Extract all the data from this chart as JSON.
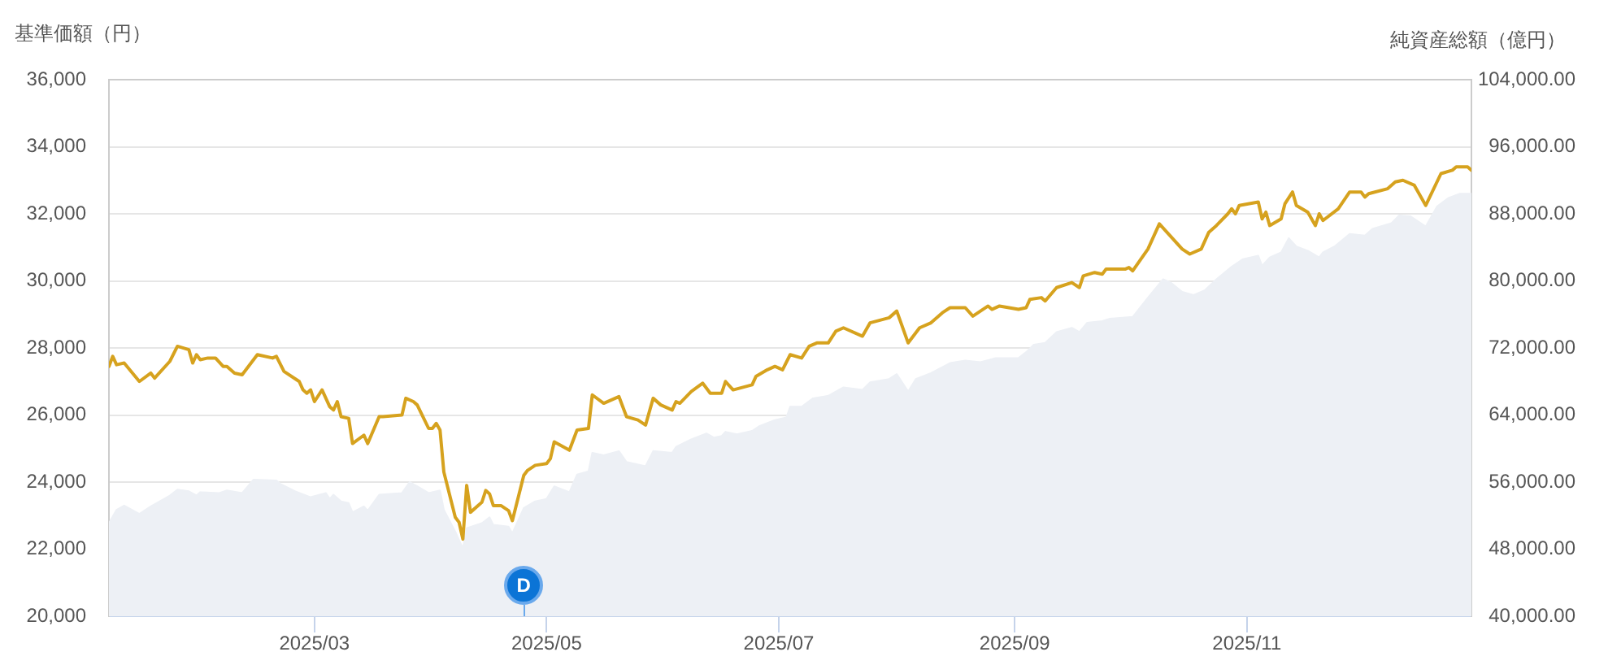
{
  "chart_data": {
    "type": "line",
    "ylabel": "基準価額（円）",
    "y2label": "純資産総額（億円）",
    "xlim": [
      "2025-01-06",
      "2025-12-30"
    ],
    "xticks": [
      {
        "value": "2025-03",
        "label": "2025/03"
      },
      {
        "value": "2025-05",
        "label": "2025/05"
      },
      {
        "value": "2025-07",
        "label": "2025/07"
      },
      {
        "value": "2025-09",
        "label": "2025/09"
      },
      {
        "value": "2025-11",
        "label": "2025/11"
      }
    ],
    "ylim": [
      20000,
      36000
    ],
    "yticks": [
      {
        "value": 20000,
        "label": "20,000"
      },
      {
        "value": 22000,
        "label": "22,000"
      },
      {
        "value": 24000,
        "label": "24,000"
      },
      {
        "value": 26000,
        "label": "26,000"
      },
      {
        "value": 28000,
        "label": "28,000"
      },
      {
        "value": 30000,
        "label": "30,000"
      },
      {
        "value": 32000,
        "label": "32,000"
      },
      {
        "value": 34000,
        "label": "34,000"
      },
      {
        "value": 36000,
        "label": "36,000"
      }
    ],
    "y2lim": [
      40000,
      104000
    ],
    "y2ticks": [
      {
        "value": 40000,
        "label": "40,000.00"
      },
      {
        "value": 48000,
        "label": "48,000.00"
      },
      {
        "value": 56000,
        "label": "56,000.00"
      },
      {
        "value": 64000,
        "label": "64,000.00"
      },
      {
        "value": 72000,
        "label": "72,000.00"
      },
      {
        "value": 80000,
        "label": "80,000.00"
      },
      {
        "value": 88000,
        "label": "88,000.00"
      },
      {
        "value": 96000,
        "label": "96,000.00"
      },
      {
        "value": 104000,
        "label": "104,000.00"
      }
    ],
    "grid": "y",
    "annotations": [
      {
        "text": "D",
        "x": "2025-04-25",
        "y": 20000
      }
    ],
    "series": [
      {
        "type": "area",
        "axis": "y2",
        "color": "#edf0f5",
        "x": [
          "2025-01-06",
          "2025-01-08",
          "2025-01-10",
          "2025-01-14",
          "2025-01-17",
          "2025-01-22",
          "2025-01-24",
          "2025-01-27",
          "2025-01-29",
          "2025-01-30",
          "2025-02-04",
          "2025-02-06",
          "2025-02-10",
          "2025-02-13",
          "2025-02-19",
          "2025-02-20",
          "2025-02-24",
          "2025-02-28",
          "2025-03-04",
          "2025-03-05",
          "2025-03-06",
          "2025-03-08",
          "2025-03-10",
          "2025-03-11",
          "2025-03-14",
          "2025-03-15",
          "2025-03-18",
          "2025-03-24",
          "2025-03-26",
          "2025-03-28",
          "2025-03-31",
          "2025-04-03",
          "2025-04-04",
          "2025-04-07",
          "2025-04-09",
          "2025-04-10",
          "2025-04-14",
          "2025-04-16",
          "2025-04-17",
          "2025-04-21",
          "2025-04-22",
          "2025-04-25",
          "2025-04-28",
          "2025-05-01",
          "2025-05-03",
          "2025-05-07",
          "2025-05-09",
          "2025-05-12",
          "2025-05-13",
          "2025-05-16",
          "2025-05-20",
          "2025-05-22",
          "2025-05-27",
          "2025-05-29",
          "2025-06-03",
          "2025-06-04",
          "2025-06-08",
          "2025-06-12",
          "2025-06-14",
          "2025-06-16",
          "2025-06-17",
          "2025-06-20",
          "2025-06-24",
          "2025-06-26",
          "2025-06-30",
          "2025-07-03",
          "2025-07-04",
          "2025-07-07",
          "2025-07-10",
          "2025-07-14",
          "2025-07-18",
          "2025-07-23",
          "2025-07-25",
          "2025-07-30",
          "2025-08-01",
          "2025-08-04",
          "2025-08-06",
          "2025-08-10",
          "2025-08-15",
          "2025-08-19",
          "2025-08-23",
          "2025-08-27",
          "2025-09-02",
          "2025-09-04",
          "2025-09-06",
          "2025-09-09",
          "2025-09-12",
          "2025-09-16",
          "2025-09-18",
          "2025-09-20",
          "2025-09-24",
          "2025-09-26",
          "2025-10-02",
          "2025-10-06",
          "2025-10-10",
          "2025-10-12",
          "2025-10-15",
          "2025-10-18",
          "2025-10-21",
          "2025-10-24",
          "2025-10-28",
          "2025-10-31",
          "2025-11-04",
          "2025-11-05",
          "2025-11-07",
          "2025-11-10",
          "2025-11-12",
          "2025-11-14",
          "2025-11-17",
          "2025-11-20",
          "2025-11-21",
          "2025-11-24",
          "2025-11-28",
          "2025-12-02",
          "2025-12-04",
          "2025-12-09",
          "2025-12-11",
          "2025-12-14",
          "2025-12-18",
          "2025-12-21",
          "2025-12-24",
          "2025-12-27",
          "2025-12-30"
        ],
        "values": [
          51100,
          52700,
          53200,
          52200,
          53100,
          54400,
          55100,
          54900,
          54400,
          54800,
          54700,
          55000,
          54700,
          56300,
          56200,
          55800,
          54900,
          54200,
          54700,
          54000,
          54500,
          53700,
          53500,
          52400,
          53100,
          52600,
          54500,
          54700,
          56000,
          55500,
          54700,
          55000,
          52700,
          50100,
          48100,
          50500,
          51100,
          51800,
          50900,
          50700,
          49900,
          52900,
          53700,
          54000,
          55500,
          54800,
          56900,
          57300,
          59500,
          59200,
          59700,
          58400,
          57900,
          59700,
          59500,
          60200,
          61100,
          61800,
          61300,
          61500,
          62000,
          61700,
          62100,
          62700,
          63400,
          63700,
          65000,
          65000,
          66000,
          66300,
          67300,
          67000,
          67900,
          68300,
          68900,
          66800,
          68300,
          69000,
          70200,
          70500,
          70300,
          70800,
          70800,
          71500,
          72400,
          72600,
          73900,
          74400,
          73900,
          75000,
          75200,
          75500,
          75700,
          78000,
          80200,
          79800,
          78700,
          78300,
          78900,
          80200,
          81700,
          82600,
          83000,
          81800,
          82800,
          83400,
          85100,
          84100,
          83600,
          82800,
          83400,
          84100,
          85600,
          85400,
          86200,
          86900,
          87800,
          87700,
          86500,
          88900,
          89900,
          90400,
          90400
        ]
      },
      {
        "color": "#d6a21e",
        "x": [
          "2025-01-06",
          "2025-01-07",
          "2025-01-08",
          "2025-01-10",
          "2025-01-14",
          "2025-01-17",
          "2025-01-18",
          "2025-01-22",
          "2025-01-24",
          "2025-01-27",
          "2025-01-28",
          "2025-01-29",
          "2025-01-30",
          "2025-02-01",
          "2025-02-03",
          "2025-02-05",
          "2025-02-06",
          "2025-02-08",
          "2025-02-10",
          "2025-02-14",
          "2025-02-18",
          "2025-02-19",
          "2025-02-21",
          "2025-02-25",
          "2025-02-26",
          "2025-02-27",
          "2025-02-28",
          "2025-03-01",
          "2025-03-03",
          "2025-03-05",
          "2025-03-06",
          "2025-03-07",
          "2025-03-08",
          "2025-03-10",
          "2025-03-11",
          "2025-03-14",
          "2025-03-15",
          "2025-03-18",
          "2025-03-19",
          "2025-03-24",
          "2025-03-25",
          "2025-03-27",
          "2025-03-28",
          "2025-03-31",
          "2025-04-01",
          "2025-04-02",
          "2025-04-03",
          "2025-04-04",
          "2025-04-07",
          "2025-04-08",
          "2025-04-09",
          "2025-04-10",
          "2025-04-11",
          "2025-04-14",
          "2025-04-15",
          "2025-04-16",
          "2025-04-17",
          "2025-04-19",
          "2025-04-21",
          "2025-04-22",
          "2025-04-25",
          "2025-04-26",
          "2025-04-28",
          "2025-05-01",
          "2025-05-02",
          "2025-05-03",
          "2025-05-07",
          "2025-05-09",
          "2025-05-12",
          "2025-05-13",
          "2025-05-16",
          "2025-05-20",
          "2025-05-22",
          "2025-05-25",
          "2025-05-27",
          "2025-05-29",
          "2025-05-31",
          "2025-06-03",
          "2025-06-04",
          "2025-06-05",
          "2025-06-08",
          "2025-06-11",
          "2025-06-13",
          "2025-06-16",
          "2025-06-17",
          "2025-06-19",
          "2025-06-24",
          "2025-06-25",
          "2025-06-28",
          "2025-06-30",
          "2025-07-02",
          "2025-07-04",
          "2025-07-07",
          "2025-07-09",
          "2025-07-11",
          "2025-07-14",
          "2025-07-16",
          "2025-07-18",
          "2025-07-23",
          "2025-07-25",
          "2025-07-30",
          "2025-08-01",
          "2025-08-04",
          "2025-08-07",
          "2025-08-10",
          "2025-08-13",
          "2025-08-15",
          "2025-08-19",
          "2025-08-21",
          "2025-08-25",
          "2025-08-26",
          "2025-08-28",
          "2025-09-02",
          "2025-09-04",
          "2025-09-05",
          "2025-09-08",
          "2025-09-09",
          "2025-09-12",
          "2025-09-16",
          "2025-09-18",
          "2025-09-19",
          "2025-09-22",
          "2025-09-24",
          "2025-09-25",
          "2025-09-30",
          "2025-10-01",
          "2025-10-02",
          "2025-10-06",
          "2025-10-09",
          "2025-10-15",
          "2025-10-17",
          "2025-10-20",
          "2025-10-22",
          "2025-10-24",
          "2025-10-27",
          "2025-10-28",
          "2025-10-29",
          "2025-10-30",
          "2025-11-04",
          "2025-11-05",
          "2025-11-06",
          "2025-11-07",
          "2025-11-10",
          "2025-11-11",
          "2025-11-13",
          "2025-11-14",
          "2025-11-17",
          "2025-11-19",
          "2025-11-20",
          "2025-11-21",
          "2025-11-25",
          "2025-11-28",
          "2025-12-01",
          "2025-12-02",
          "2025-12-03",
          "2025-12-08",
          "2025-12-10",
          "2025-12-12",
          "2025-12-15",
          "2025-12-18",
          "2025-12-22",
          "2025-12-25",
          "2025-12-26",
          "2025-12-29",
          "2025-12-30"
        ],
        "values": [
          27450,
          27750,
          27500,
          27550,
          27000,
          27250,
          27100,
          27600,
          28050,
          27950,
          27550,
          27800,
          27650,
          27700,
          27700,
          27450,
          27450,
          27250,
          27200,
          27800,
          27700,
          27750,
          27300,
          27000,
          26750,
          26650,
          26750,
          26400,
          26750,
          26250,
          26150,
          26400,
          25950,
          25900,
          25150,
          25400,
          25150,
          25950,
          25950,
          26000,
          26500,
          26400,
          26300,
          25600,
          25600,
          25750,
          25550,
          24300,
          22950,
          22800,
          22300,
          23900,
          23100,
          23400,
          23750,
          23650,
          23300,
          23300,
          23150,
          22850,
          24200,
          24350,
          24500,
          24550,
          24700,
          25200,
          24950,
          25550,
          25600,
          26600,
          26350,
          26550,
          25950,
          25850,
          25700,
          26500,
          26300,
          26150,
          26400,
          26350,
          26700,
          26950,
          26650,
          26650,
          27000,
          26750,
          26900,
          27150,
          27350,
          27450,
          27350,
          27800,
          27700,
          28050,
          28150,
          28150,
          28500,
          28600,
          28350,
          28750,
          28900,
          29100,
          28150,
          28600,
          28750,
          29050,
          29200,
          29200,
          28950,
          29250,
          29150,
          29250,
          29150,
          29200,
          29450,
          29500,
          29400,
          29800,
          29950,
          29800,
          30150,
          30250,
          30200,
          30350,
          30350,
          30400,
          30300,
          30950,
          31700,
          30950,
          30800,
          30950,
          31450,
          31650,
          32000,
          32150,
          32000,
          32250,
          32350,
          31850,
          32050,
          31650,
          31850,
          32300,
          32650,
          32250,
          32050,
          31650,
          32000,
          31800,
          32150,
          32650,
          32650,
          32500,
          32600,
          32750,
          32950,
          33000,
          32850,
          32250,
          33200,
          33300,
          33400,
          33400,
          33300
        ]
      }
    ]
  }
}
